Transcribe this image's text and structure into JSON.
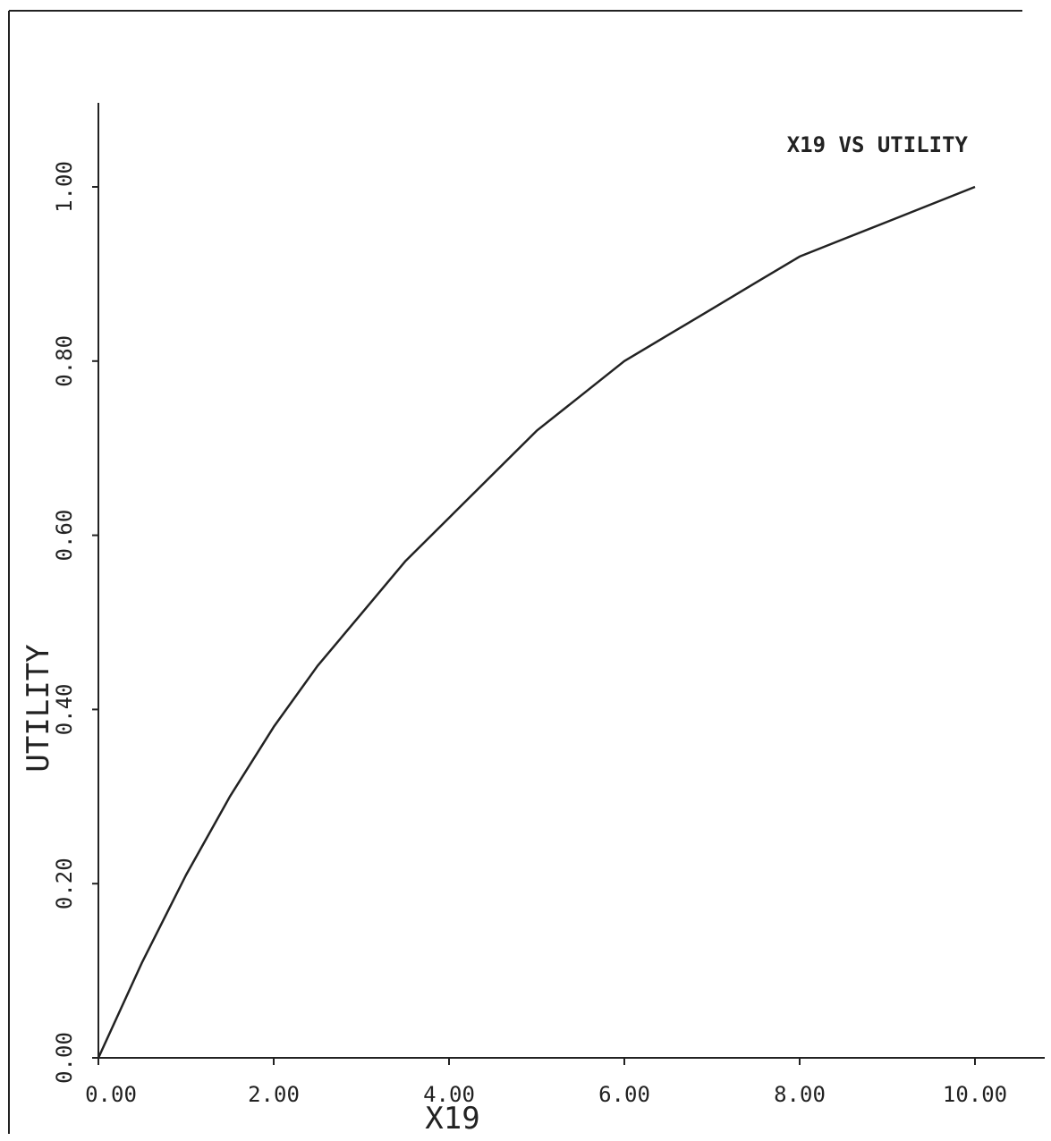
{
  "chart_data": {
    "type": "line",
    "title": "X19 VS UTILITY",
    "xlabel": "X19",
    "ylabel": "UTILITY",
    "xlim": [
      0,
      10
    ],
    "ylim": [
      0,
      1.0
    ],
    "x_ticks": [
      "0.00",
      "2.00",
      "4.00",
      "6.00",
      "8.00",
      "10.00"
    ],
    "y_ticks": [
      "0.00",
      "0.20",
      "0.40",
      "0.60",
      "0.80",
      "1.00"
    ],
    "grid": false,
    "legend": "none",
    "line_color": "#222222",
    "series": [
      {
        "x": [
          0,
          0.5,
          1,
          1.5,
          2,
          2.5,
          3,
          3.5,
          4,
          4.5,
          5,
          5.5,
          6,
          6.5,
          7,
          7.5,
          8,
          8.5,
          9,
          9.5,
          10
        ],
        "values": [
          0,
          0.11,
          0.21,
          0.3,
          0.38,
          0.45,
          0.51,
          0.57,
          0.62,
          0.67,
          0.72,
          0.76,
          0.8,
          0.83,
          0.86,
          0.89,
          0.92,
          0.94,
          0.96,
          0.98,
          1.0
        ]
      }
    ]
  }
}
